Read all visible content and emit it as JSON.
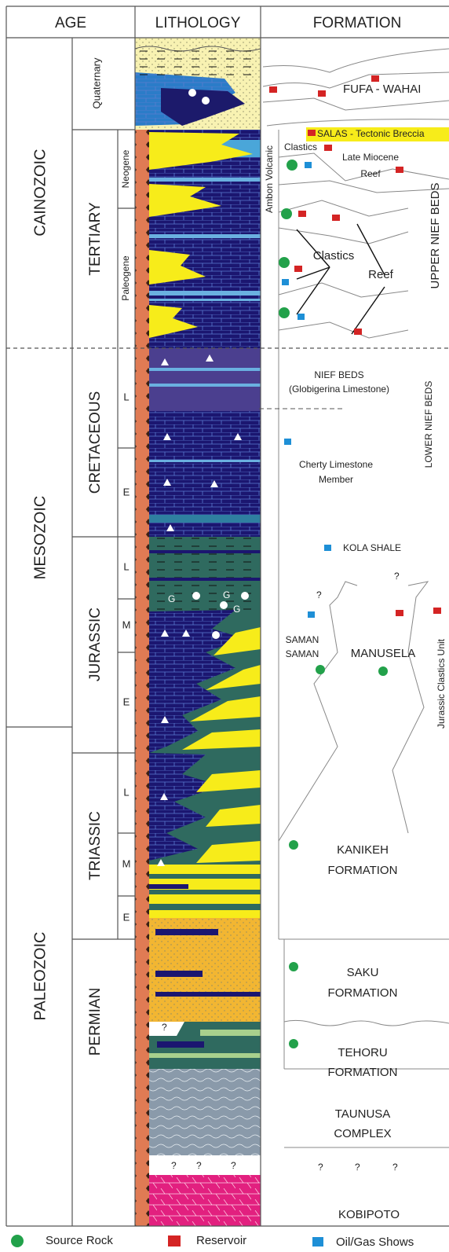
{
  "header": {
    "age": "AGE",
    "lithology": "LITHOLOGY",
    "formation": "FORMATION"
  },
  "eras": [
    "CAINOZOIC",
    "MESOZOIC",
    "PALEOZOIC"
  ],
  "periods": [
    "Quaternary",
    "TERTIARY",
    "CRETACEOUS",
    "JURASSIC",
    "TRIASSIC",
    "PERMIAN"
  ],
  "epochs": [
    "Neogene",
    "Paleogene",
    "L",
    "E",
    "L",
    "M",
    "E",
    "L",
    "M",
    "E"
  ],
  "lithology_marks": [
    "G",
    "G",
    "G",
    "?",
    "?",
    "?",
    "?"
  ],
  "formations": {
    "fufa_wahai": "FUFA - WAHAI",
    "salas": "SALAS - Tectonic Breccia",
    "clastics_upper": "Clastics",
    "late_miocene_reef": [
      "Late Miocene",
      "Reef"
    ],
    "ambon_volcanic": "Ambon Volcanic",
    "clastics": "Clastics",
    "reef": "Reef",
    "upper_nief_beds": "UPPER NIEF BEDS",
    "nief_beds": [
      "NIEF BEDS",
      "(Globigerina  Limestone)"
    ],
    "lower_nief_beds": "LOWER NIEF BEDS",
    "cherty_limestone": [
      "Cherty Limestone",
      "Member"
    ],
    "kola_shale": "KOLA SHALE",
    "question_marks": [
      "?",
      "?",
      "?",
      "?",
      "?"
    ],
    "saman_saman": [
      "SAMAN",
      "SAMAN"
    ],
    "manusela": "MANUSELA",
    "jurassic_clastics": "Jurassic Clastics Unit",
    "kanikeh": [
      "KANIKEH",
      "FORMATION"
    ],
    "saku": [
      "SAKU",
      "FORMATION"
    ],
    "tehoru": [
      "TEHORU",
      "FORMATION"
    ],
    "taunusa": [
      "TAUNUSA",
      "COMPLEX"
    ],
    "kobipoto": "KOBIPOTO"
  },
  "legend": [
    "Source Rock",
    "Reservoir",
    "Oil/Gas Shows"
  ]
}
